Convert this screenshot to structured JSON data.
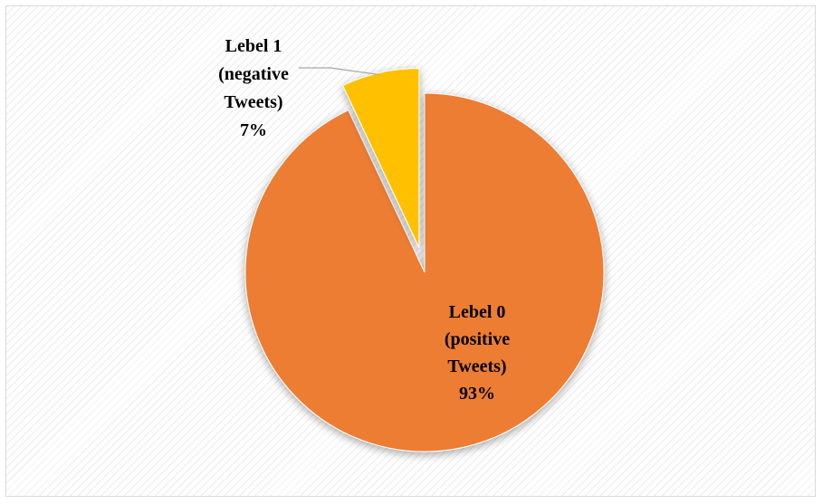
{
  "chart_data": {
    "type": "pie",
    "title": "",
    "slices": [
      {
        "label": "Lebel 0 (positive Tweets)",
        "label_lines": [
          "Lebel 0",
          "(positive",
          "Tweets)",
          "93%"
        ],
        "value": 93,
        "color": "#ED7D31",
        "exploded": false
      },
      {
        "label": "Lebel 1 (negative Tweets)",
        "label_lines": [
          "Lebel 1",
          "(negative",
          "Tweets)",
          "7%"
        ],
        "value": 7,
        "color": "#FFC000",
        "exploded": true
      }
    ],
    "legend": "none",
    "start_angle_deg": 0,
    "direction": "clockwise",
    "leader_line": true,
    "background": "diagonal-hatch"
  }
}
